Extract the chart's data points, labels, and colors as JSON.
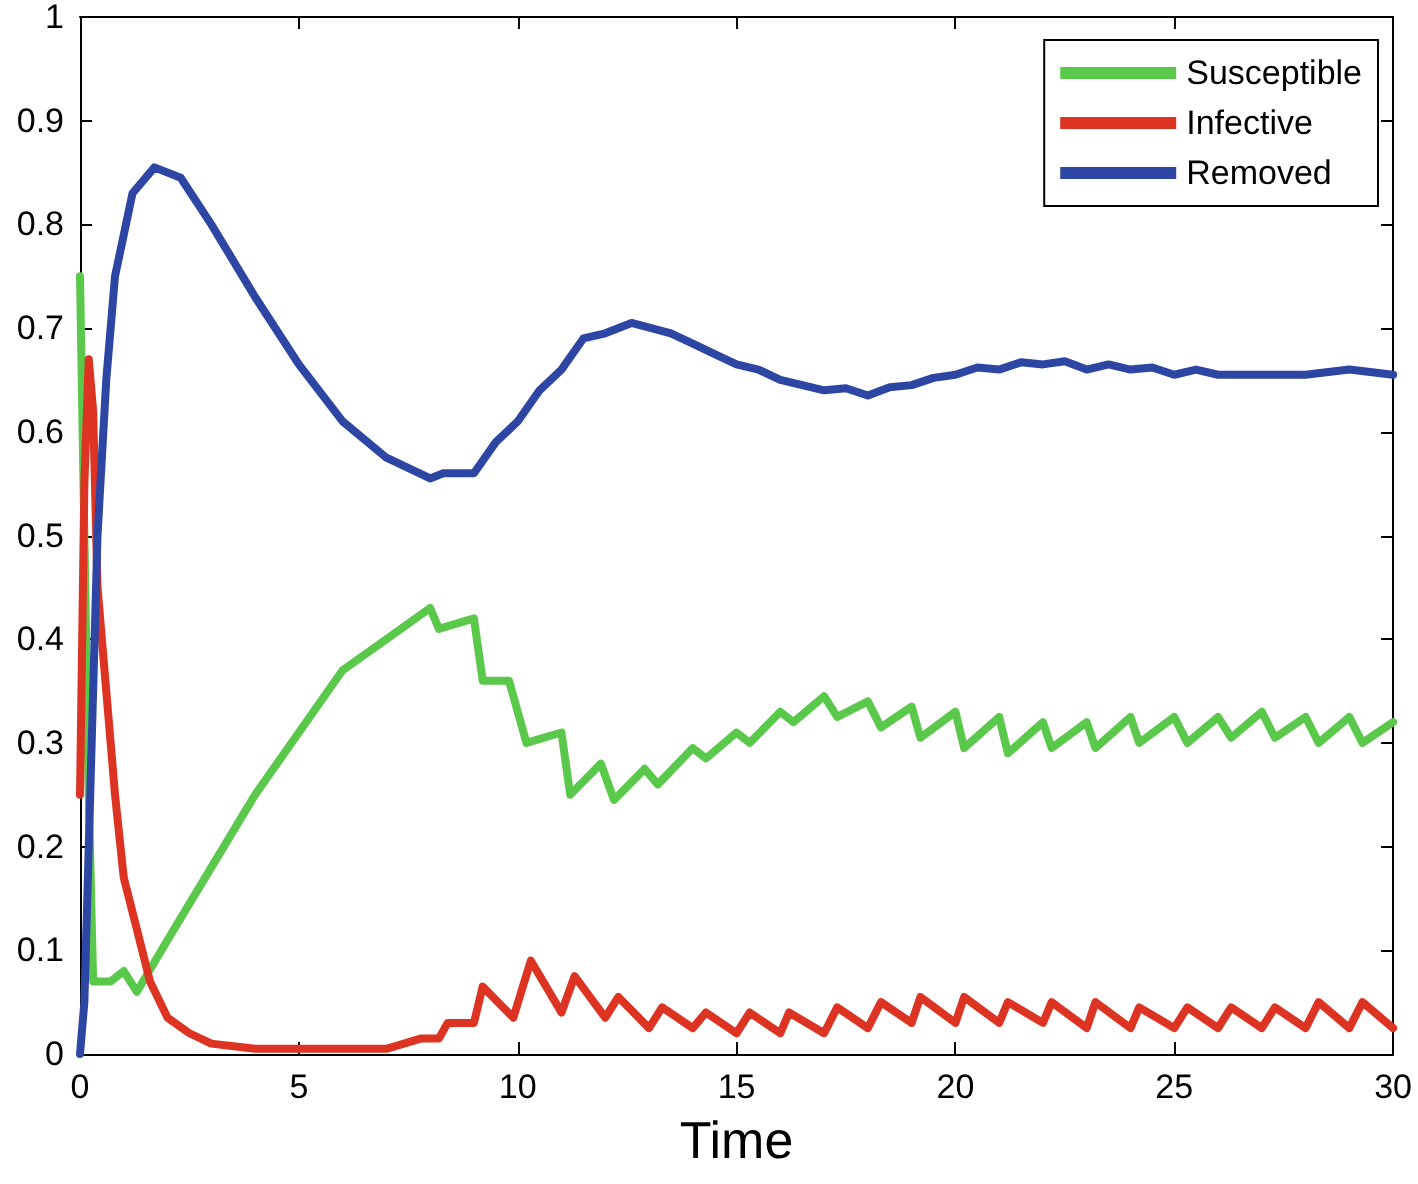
{
  "chart_data": {
    "type": "line",
    "xlabel": "Time",
    "xlim": [
      0,
      30
    ],
    "xticks": [
      0,
      5,
      10,
      15,
      20,
      25,
      30
    ],
    "ylim": [
      0,
      1
    ],
    "yticks": [
      0,
      0.1,
      0.2,
      0.3,
      0.4,
      0.5,
      0.6,
      0.7,
      0.8,
      0.9,
      1
    ],
    "grid": false,
    "legend": "top right",
    "marker": "none",
    "line_style": "solid",
    "series": [
      {
        "name": "Susceptible",
        "color": "#5ac84a",
        "x": [
          0,
          0.1,
          0.2,
          0.3,
          0.7,
          1.0,
          1.3,
          2,
          3,
          4,
          5,
          6,
          7,
          8,
          8.2,
          9,
          9.2,
          9.8,
          10.2,
          11,
          11.2,
          11.9,
          12.2,
          12.9,
          13.2,
          14,
          14.3,
          15,
          15.3,
          16,
          16.3,
          17,
          17.3,
          18,
          18.3,
          19,
          19.2,
          20,
          20.2,
          21,
          21.2,
          22,
          22.2,
          23,
          23.2,
          24,
          24.2,
          25,
          25.3,
          26,
          26.3,
          27,
          27.3,
          28,
          28.3,
          29,
          29.3,
          30
        ],
        "values": [
          0.75,
          0.5,
          0.25,
          0.07,
          0.07,
          0.08,
          0.06,
          0.11,
          0.18,
          0.25,
          0.31,
          0.37,
          0.4,
          0.43,
          0.41,
          0.42,
          0.36,
          0.36,
          0.3,
          0.31,
          0.25,
          0.28,
          0.245,
          0.275,
          0.26,
          0.295,
          0.285,
          0.31,
          0.3,
          0.33,
          0.32,
          0.345,
          0.325,
          0.34,
          0.315,
          0.335,
          0.305,
          0.33,
          0.295,
          0.325,
          0.29,
          0.32,
          0.295,
          0.32,
          0.295,
          0.325,
          0.3,
          0.325,
          0.3,
          0.325,
          0.305,
          0.33,
          0.305,
          0.325,
          0.3,
          0.325,
          0.3,
          0.32
        ]
      },
      {
        "name": "Infective",
        "color": "#dd3322",
        "x": [
          0,
          0.1,
          0.2,
          0.3,
          0.4,
          0.6,
          0.8,
          1,
          1.3,
          1.6,
          2,
          2.5,
          3,
          4,
          5,
          6,
          7,
          7.8,
          8.2,
          8.4,
          9,
          9.2,
          9.9,
          10.3,
          11,
          11.3,
          12,
          12.3,
          13,
          13.3,
          14,
          14.3,
          15,
          15.3,
          16,
          16.2,
          17,
          17.3,
          18,
          18.3,
          19,
          19.2,
          20,
          20.2,
          21,
          21.2,
          22,
          22.2,
          23,
          23.2,
          24,
          24.2,
          25,
          25.3,
          26,
          26.3,
          27,
          27.3,
          28,
          28.3,
          29,
          29.3,
          30
        ],
        "values": [
          0.25,
          0.55,
          0.67,
          0.62,
          0.45,
          0.35,
          0.25,
          0.17,
          0.12,
          0.07,
          0.035,
          0.02,
          0.01,
          0.005,
          0.005,
          0.005,
          0.005,
          0.015,
          0.015,
          0.03,
          0.03,
          0.065,
          0.035,
          0.09,
          0.04,
          0.075,
          0.035,
          0.055,
          0.025,
          0.045,
          0.025,
          0.04,
          0.02,
          0.04,
          0.02,
          0.04,
          0.02,
          0.045,
          0.025,
          0.05,
          0.03,
          0.055,
          0.03,
          0.055,
          0.03,
          0.05,
          0.03,
          0.05,
          0.025,
          0.05,
          0.025,
          0.045,
          0.025,
          0.045,
          0.025,
          0.045,
          0.025,
          0.045,
          0.025,
          0.05,
          0.025,
          0.05,
          0.025
        ]
      },
      {
        "name": "Removed",
        "color": "#2e46a3",
        "x": [
          0,
          0.1,
          0.2,
          0.3,
          0.4,
          0.6,
          0.8,
          1.2,
          1.7,
          2.3,
          3,
          4,
          5,
          6,
          7,
          8,
          8.3,
          9,
          9.5,
          10,
          10.5,
          11,
          11.5,
          12,
          12.6,
          13.5,
          14,
          14.5,
          15,
          15.5,
          16,
          16.5,
          17,
          17.5,
          18,
          18.5,
          19,
          19.5,
          20,
          20.5,
          21,
          21.5,
          22,
          22.5,
          23,
          23.5,
          24,
          24.5,
          25,
          25.5,
          26,
          27,
          28,
          29,
          30
        ],
        "values": [
          0,
          0.05,
          0.2,
          0.35,
          0.5,
          0.65,
          0.75,
          0.83,
          0.855,
          0.845,
          0.8,
          0.73,
          0.665,
          0.61,
          0.575,
          0.555,
          0.56,
          0.56,
          0.59,
          0.61,
          0.64,
          0.66,
          0.69,
          0.695,
          0.705,
          0.695,
          0.685,
          0.675,
          0.665,
          0.66,
          0.65,
          0.645,
          0.64,
          0.642,
          0.635,
          0.643,
          0.645,
          0.652,
          0.655,
          0.662,
          0.66,
          0.667,
          0.665,
          0.668,
          0.66,
          0.665,
          0.66,
          0.662,
          0.655,
          0.66,
          0.655,
          0.655,
          0.655,
          0.66,
          0.655
        ]
      }
    ]
  }
}
